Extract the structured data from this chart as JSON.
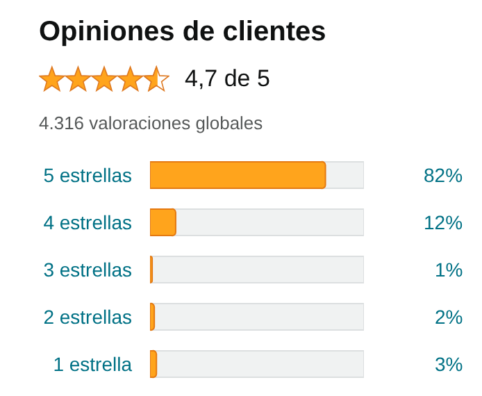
{
  "chart_data": {
    "type": "bar",
    "orientation": "horizontal",
    "title": "Opiniones de clientes",
    "subtitle": "4,7 de 5",
    "annotations": [
      "4.316 valoraciones globales"
    ],
    "categories": [
      "5 estrellas",
      "4 estrellas",
      "3 estrellas",
      "2 estrellas",
      "1 estrella"
    ],
    "values": [
      82,
      12,
      1,
      2,
      3
    ],
    "value_labels": [
      "82%",
      "12%",
      "1%",
      "2%",
      "3%"
    ],
    "color": "#ffa41c",
    "xlim": [
      0,
      100
    ],
    "tick_labels": "y"
  }
}
